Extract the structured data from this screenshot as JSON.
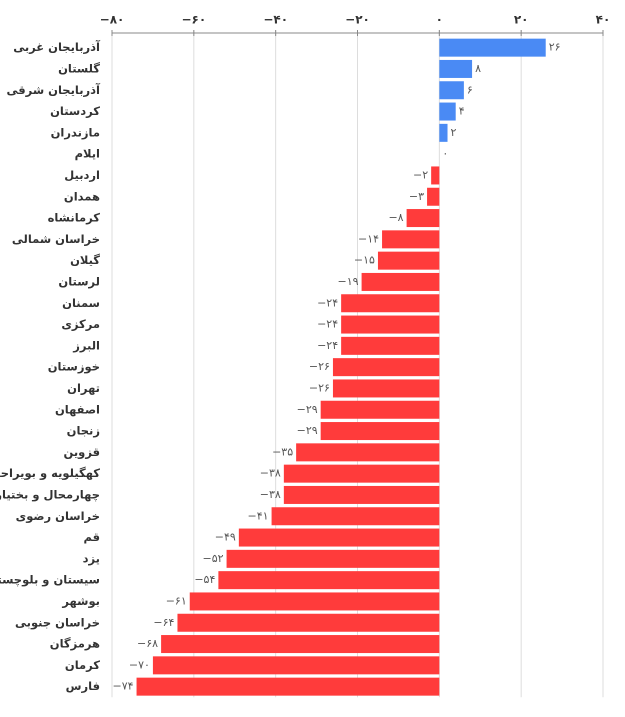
{
  "chart_data": {
    "type": "barh",
    "categories": [
      "آذربایجان غربی",
      "گلستان",
      "آذربایجان شرقی",
      "کردستان",
      "مازندران",
      "ایلام",
      "اردبیل",
      "همدان",
      "کرمانشاه",
      "خراسان شمالی",
      "گیلان",
      "لرستان",
      "سمنان",
      "مرکزی",
      "البرز",
      "خوزستان",
      "تهران",
      "اصفهان",
      "زنجان",
      "قزوین",
      "کهگیلویه و بویراحمد",
      "چهارمحال و بختیاری",
      "خراسان رضوی",
      "قم",
      "یزد",
      "سیستان و بلوچستان",
      "بوشهر",
      "خراسان جنوبی",
      "هرمزگان",
      "کرمان",
      "فارس"
    ],
    "values": [
      26,
      8,
      6,
      4,
      2,
      0,
      -2,
      -3,
      -8,
      -14,
      -15,
      -19,
      -24,
      -24,
      -24,
      -26,
      -26,
      -29,
      -29,
      -35,
      -38,
      -38,
      -41,
      -49,
      -52,
      -54,
      -61,
      -64,
      -68,
      -70,
      -74
    ],
    "value_labels": [
      "۲۶",
      "۸",
      "۶",
      "۴",
      "۲",
      "۰",
      "−۲",
      "−۳",
      "−۸",
      "−۱۴",
      "−۱۵",
      "−۱۹",
      "−۲۴",
      "−۲۴",
      "−۲۴",
      "−۲۶",
      "−۲۶",
      "−۲۹",
      "−۲۹",
      "−۳۵",
      "−۳۸",
      "−۳۸",
      "−۴۱",
      "−۴۹",
      "−۵۲",
      "−۵۴",
      "−۶۱",
      "−۶۴",
      "−۶۸",
      "−۷۰",
      "−۷۴"
    ],
    "colors": {
      "positive": "#4a8af4",
      "negative": "#ff3b3b"
    },
    "xlim": [
      -80,
      40
    ],
    "xticks": [
      {
        "value": -80,
        "label": "−۸۰"
      },
      {
        "value": -60,
        "label": "−۶۰"
      },
      {
        "value": -40,
        "label": "−۴۰"
      },
      {
        "value": -20,
        "label": "−۲۰"
      },
      {
        "value": 0,
        "label": "۰"
      },
      {
        "value": 20,
        "label": "۲۰"
      },
      {
        "value": 40,
        "label": "۴۰"
      }
    ],
    "grid": true
  }
}
